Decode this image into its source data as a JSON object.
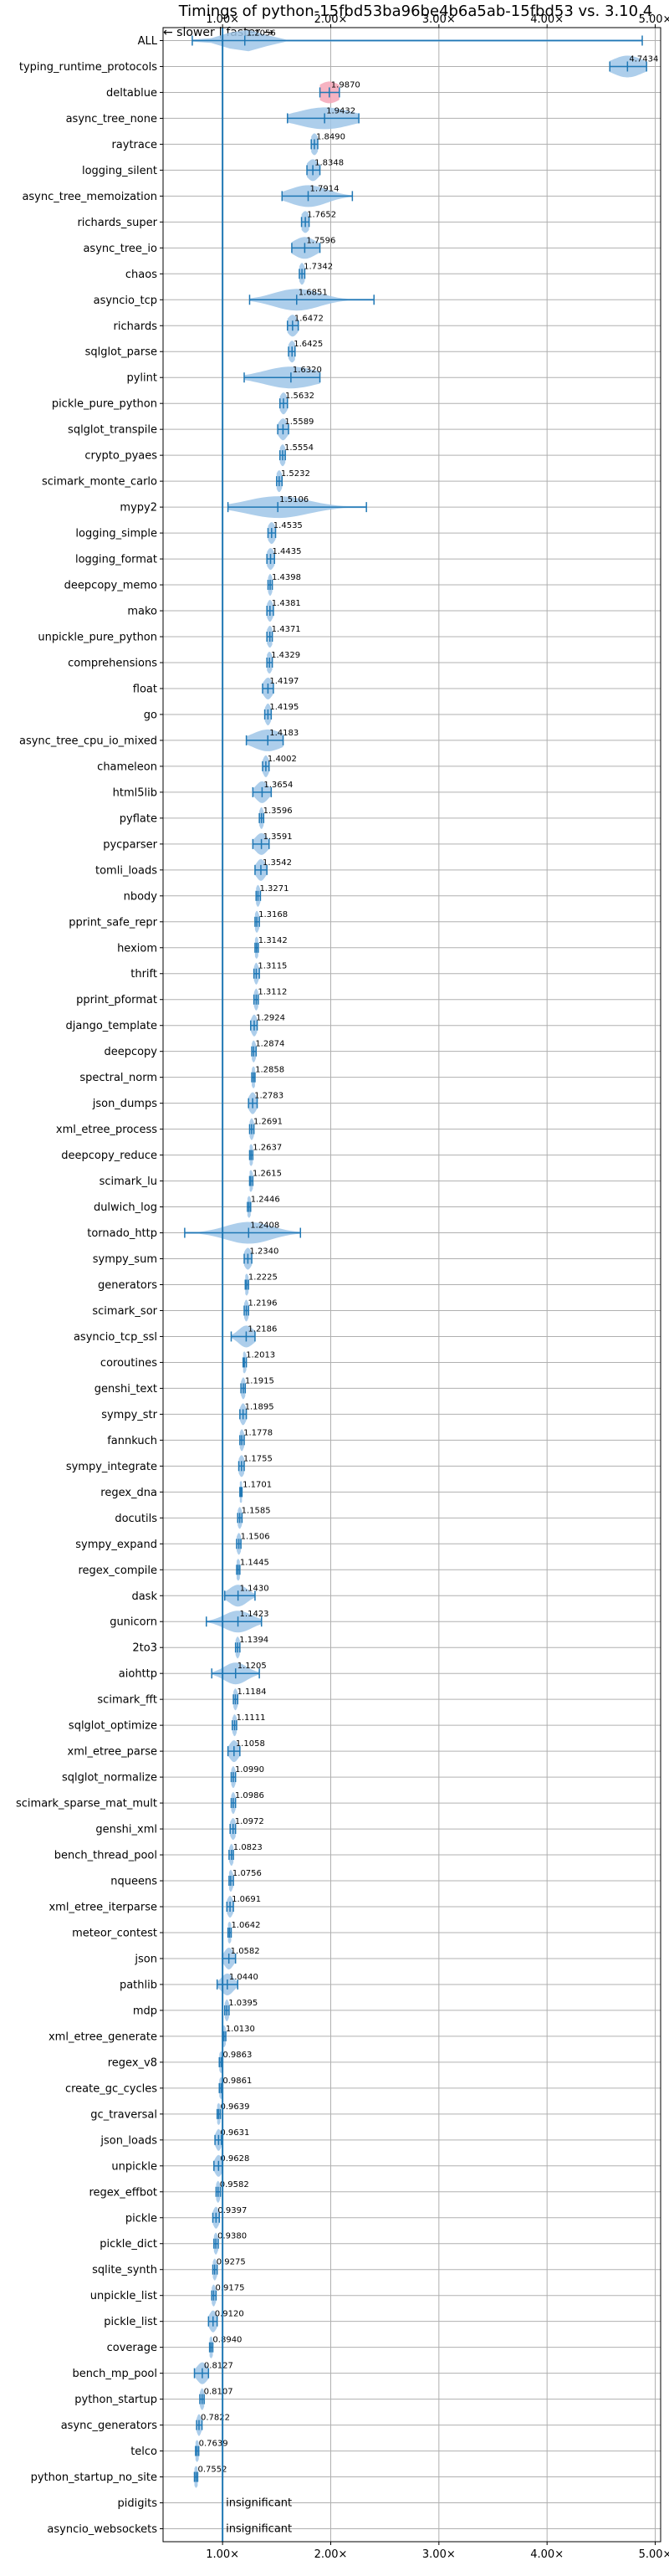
{
  "chart_data": {
    "type": "violin",
    "title": "Timings of python-15fbd53ba96be4b6a5ab-15fbd53 vs. 3.10.4",
    "direction_label": "← slower | faster →",
    "x_ticks": [
      "1.00×",
      "2.00×",
      "3.00×",
      "4.00×",
      "5.00×"
    ],
    "x_tick_values": [
      1,
      2,
      3,
      4,
      5
    ],
    "xlim": [
      0.45,
      5.05
    ],
    "reference_line": 1.0,
    "grid": true,
    "colors": {
      "violin": "#9fc5e8",
      "line": "#1f77b4",
      "highlight": "#f4a6b7"
    },
    "insignificant_label": "insignificant",
    "benchmarks": [
      {
        "name": "ALL",
        "mean": 1.2056,
        "label": "1.2056",
        "min": 0.72,
        "max": 4.88,
        "spread": 0.25
      },
      {
        "name": "typing_runtime_protocols",
        "mean": 4.7434,
        "label": "4.7434",
        "min": 4.58,
        "max": 4.92,
        "spread": 0.2
      },
      {
        "name": "deltablue",
        "mean": 1.987,
        "label": "1.9870",
        "min": 1.9,
        "max": 2.08,
        "spread": 0.15,
        "highlight": true
      },
      {
        "name": "async_tree_none",
        "mean": 1.9432,
        "label": "1.9432",
        "min": 1.6,
        "max": 2.26,
        "spread": 0.35
      },
      {
        "name": "raytrace",
        "mean": 1.849,
        "label": "1.8490",
        "min": 1.82,
        "max": 1.88,
        "spread": 0.05
      },
      {
        "name": "logging_silent",
        "mean": 1.8348,
        "label": "1.8348",
        "min": 1.78,
        "max": 1.9,
        "spread": 0.08
      },
      {
        "name": "async_tree_memoization",
        "mean": 1.7914,
        "label": "1.7914",
        "min": 1.55,
        "max": 2.2,
        "spread": 0.25
      },
      {
        "name": "richards_super",
        "mean": 1.7652,
        "label": "1.7652",
        "min": 1.73,
        "max": 1.8,
        "spread": 0.06
      },
      {
        "name": "async_tree_io",
        "mean": 1.7596,
        "label": "1.7596",
        "min": 1.64,
        "max": 1.9,
        "spread": 0.15
      },
      {
        "name": "chaos",
        "mean": 1.7342,
        "label": "1.7342",
        "min": 1.71,
        "max": 1.76,
        "spread": 0.04
      },
      {
        "name": "asyncio_tcp",
        "mean": 1.6851,
        "label": "1.6851",
        "min": 1.25,
        "max": 2.4,
        "spread": 0.3
      },
      {
        "name": "richards",
        "mean": 1.6472,
        "label": "1.6472",
        "min": 1.6,
        "max": 1.7,
        "spread": 0.07
      },
      {
        "name": "sqlglot_parse",
        "mean": 1.6425,
        "label": "1.6425",
        "min": 1.61,
        "max": 1.67,
        "spread": 0.05
      },
      {
        "name": "pylint",
        "mean": 1.632,
        "label": "1.6320",
        "min": 1.2,
        "max": 1.9,
        "spread": 0.35
      },
      {
        "name": "pickle_pure_python",
        "mean": 1.5632,
        "label": "1.5632",
        "min": 1.53,
        "max": 1.6,
        "spread": 0.05
      },
      {
        "name": "sqlglot_transpile",
        "mean": 1.5589,
        "label": "1.5589",
        "min": 1.51,
        "max": 1.61,
        "spread": 0.06
      },
      {
        "name": "crypto_pyaes",
        "mean": 1.5554,
        "label": "1.5554",
        "min": 1.53,
        "max": 1.58,
        "spread": 0.04
      },
      {
        "name": "scimark_monte_carlo",
        "mean": 1.5232,
        "label": "1.5232",
        "min": 1.5,
        "max": 1.55,
        "spread": 0.04
      },
      {
        "name": "mypy2",
        "mean": 1.5106,
        "label": "1.5106",
        "min": 1.05,
        "max": 2.33,
        "spread": 0.4
      },
      {
        "name": "logging_simple",
        "mean": 1.4535,
        "label": "1.4535",
        "min": 1.42,
        "max": 1.49,
        "spread": 0.05
      },
      {
        "name": "logging_format",
        "mean": 1.4435,
        "label": "1.4435",
        "min": 1.41,
        "max": 1.48,
        "spread": 0.05
      },
      {
        "name": "deepcopy_memo",
        "mean": 1.4398,
        "label": "1.4398",
        "min": 1.42,
        "max": 1.46,
        "spread": 0.03
      },
      {
        "name": "mako",
        "mean": 1.4381,
        "label": "1.4381",
        "min": 1.41,
        "max": 1.47,
        "spread": 0.04
      },
      {
        "name": "unpickle_pure_python",
        "mean": 1.4371,
        "label": "1.4371",
        "min": 1.41,
        "max": 1.46,
        "spread": 0.04
      },
      {
        "name": "comprehensions",
        "mean": 1.4329,
        "label": "1.4329",
        "min": 1.41,
        "max": 1.46,
        "spread": 0.04
      },
      {
        "name": "float",
        "mean": 1.4197,
        "label": "1.4197",
        "min": 1.37,
        "max": 1.47,
        "spread": 0.06
      },
      {
        "name": "go",
        "mean": 1.4195,
        "label": "1.4195",
        "min": 1.39,
        "max": 1.45,
        "spread": 0.04
      },
      {
        "name": "async_tree_cpu_io_mixed",
        "mean": 1.4183,
        "label": "1.4183",
        "min": 1.22,
        "max": 1.56,
        "spread": 0.2
      },
      {
        "name": "chameleon",
        "mean": 1.4002,
        "label": "1.4002",
        "min": 1.37,
        "max": 1.43,
        "spread": 0.04
      },
      {
        "name": "html5lib",
        "mean": 1.3654,
        "label": "1.3654",
        "min": 1.28,
        "max": 1.45,
        "spread": 0.08
      },
      {
        "name": "pyflate",
        "mean": 1.3596,
        "label": "1.3596",
        "min": 1.34,
        "max": 1.38,
        "spread": 0.03
      },
      {
        "name": "pycparser",
        "mean": 1.3591,
        "label": "1.3591",
        "min": 1.28,
        "max": 1.43,
        "spread": 0.08
      },
      {
        "name": "tomli_loads",
        "mean": 1.3542,
        "label": "1.3542",
        "min": 1.3,
        "max": 1.41,
        "spread": 0.06
      },
      {
        "name": "nbody",
        "mean": 1.3271,
        "label": "1.3271",
        "min": 1.31,
        "max": 1.35,
        "spread": 0.03
      },
      {
        "name": "pprint_safe_repr",
        "mean": 1.3168,
        "label": "1.3168",
        "min": 1.3,
        "max": 1.34,
        "spread": 0.03
      },
      {
        "name": "hexiom",
        "mean": 1.3142,
        "label": "1.3142",
        "min": 1.3,
        "max": 1.33,
        "spread": 0.03
      },
      {
        "name": "thrift",
        "mean": 1.3115,
        "label": "1.3115",
        "min": 1.29,
        "max": 1.34,
        "spread": 0.03
      },
      {
        "name": "pprint_pformat",
        "mean": 1.3112,
        "label": "1.3112",
        "min": 1.29,
        "max": 1.33,
        "spread": 0.03
      },
      {
        "name": "django_template",
        "mean": 1.2924,
        "label": "1.2924",
        "min": 1.26,
        "max": 1.32,
        "spread": 0.04
      },
      {
        "name": "deepcopy",
        "mean": 1.2874,
        "label": "1.2874",
        "min": 1.27,
        "max": 1.31,
        "spread": 0.03
      },
      {
        "name": "spectral_norm",
        "mean": 1.2858,
        "label": "1.2858",
        "min": 1.27,
        "max": 1.3,
        "spread": 0.03
      },
      {
        "name": "json_dumps",
        "mean": 1.2783,
        "label": "1.2783",
        "min": 1.24,
        "max": 1.32,
        "spread": 0.05
      },
      {
        "name": "xml_etree_process",
        "mean": 1.2691,
        "label": "1.2691",
        "min": 1.25,
        "max": 1.29,
        "spread": 0.03
      },
      {
        "name": "deepcopy_reduce",
        "mean": 1.2637,
        "label": "1.2637",
        "min": 1.25,
        "max": 1.28,
        "spread": 0.03
      },
      {
        "name": "scimark_lu",
        "mean": 1.2615,
        "label": "1.2615",
        "min": 1.25,
        "max": 1.28,
        "spread": 0.03
      },
      {
        "name": "dulwich_log",
        "mean": 1.2446,
        "label": "1.2446",
        "min": 1.23,
        "max": 1.26,
        "spread": 0.03
      },
      {
        "name": "tornado_http",
        "mean": 1.2408,
        "label": "1.2408",
        "min": 0.65,
        "max": 1.72,
        "spread": 0.3
      },
      {
        "name": "sympy_sum",
        "mean": 1.234,
        "label": "1.2340",
        "min": 1.2,
        "max": 1.27,
        "spread": 0.05
      },
      {
        "name": "generators",
        "mean": 1.2225,
        "label": "1.2225",
        "min": 1.21,
        "max": 1.24,
        "spread": 0.03
      },
      {
        "name": "scimark_sor",
        "mean": 1.2196,
        "label": "1.2196",
        "min": 1.2,
        "max": 1.24,
        "spread": 0.03
      },
      {
        "name": "asyncio_tcp_ssl",
        "mean": 1.2186,
        "label": "1.2186",
        "min": 1.08,
        "max": 1.3,
        "spread": 0.1
      },
      {
        "name": "coroutines",
        "mean": 1.2013,
        "label": "1.2013",
        "min": 1.19,
        "max": 1.22,
        "spread": 0.03
      },
      {
        "name": "genshi_text",
        "mean": 1.1915,
        "label": "1.1915",
        "min": 1.17,
        "max": 1.21,
        "spread": 0.03
      },
      {
        "name": "sympy_str",
        "mean": 1.1895,
        "label": "1.1895",
        "min": 1.16,
        "max": 1.22,
        "spread": 0.04
      },
      {
        "name": "fannkuch",
        "mean": 1.1778,
        "label": "1.1778",
        "min": 1.16,
        "max": 1.2,
        "spread": 0.03
      },
      {
        "name": "sympy_integrate",
        "mean": 1.1755,
        "label": "1.1755",
        "min": 1.15,
        "max": 1.2,
        "spread": 0.04
      },
      {
        "name": "regex_dna",
        "mean": 1.1701,
        "label": "1.1701",
        "min": 1.16,
        "max": 1.18,
        "spread": 0.02
      },
      {
        "name": "docutils",
        "mean": 1.1585,
        "label": "1.1585",
        "min": 1.14,
        "max": 1.18,
        "spread": 0.03
      },
      {
        "name": "sympy_expand",
        "mean": 1.1506,
        "label": "1.1506",
        "min": 1.13,
        "max": 1.17,
        "spread": 0.03
      },
      {
        "name": "regex_compile",
        "mean": 1.1445,
        "label": "1.1445",
        "min": 1.13,
        "max": 1.16,
        "spread": 0.03
      },
      {
        "name": "dask",
        "mean": 1.143,
        "label": "1.1430",
        "min": 1.02,
        "max": 1.3,
        "spread": 0.12
      },
      {
        "name": "gunicorn",
        "mean": 1.1423,
        "label": "1.1423",
        "min": 0.85,
        "max": 1.36,
        "spread": 0.18
      },
      {
        "name": "2to3",
        "mean": 1.1394,
        "label": "1.1394",
        "min": 1.12,
        "max": 1.16,
        "spread": 0.03
      },
      {
        "name": "aiohttp",
        "mean": 1.1205,
        "label": "1.1205",
        "min": 0.9,
        "max": 1.34,
        "spread": 0.15
      },
      {
        "name": "scimark_fft",
        "mean": 1.1184,
        "label": "1.1184",
        "min": 1.1,
        "max": 1.14,
        "spread": 0.03
      },
      {
        "name": "sqlglot_optimize",
        "mean": 1.1111,
        "label": "1.1111",
        "min": 1.09,
        "max": 1.13,
        "spread": 0.03
      },
      {
        "name": "xml_etree_parse",
        "mean": 1.1058,
        "label": "1.1058",
        "min": 1.05,
        "max": 1.16,
        "spread": 0.06
      },
      {
        "name": "sqlglot_normalize",
        "mean": 1.099,
        "label": "1.0990",
        "min": 1.08,
        "max": 1.12,
        "spread": 0.03
      },
      {
        "name": "scimark_sparse_mat_mult",
        "mean": 1.0986,
        "label": "1.0986",
        "min": 1.08,
        "max": 1.12,
        "spread": 0.03
      },
      {
        "name": "genshi_xml",
        "mean": 1.0972,
        "label": "1.0972",
        "min": 1.07,
        "max": 1.12,
        "spread": 0.04
      },
      {
        "name": "bench_thread_pool",
        "mean": 1.0823,
        "label": "1.0823",
        "min": 1.06,
        "max": 1.1,
        "spread": 0.03
      },
      {
        "name": "nqueens",
        "mean": 1.0756,
        "label": "1.0756",
        "min": 1.06,
        "max": 1.1,
        "spread": 0.03
      },
      {
        "name": "xml_etree_iterparse",
        "mean": 1.0691,
        "label": "1.0691",
        "min": 1.04,
        "max": 1.1,
        "spread": 0.04
      },
      {
        "name": "meteor_contest",
        "mean": 1.0642,
        "label": "1.0642",
        "min": 1.05,
        "max": 1.08,
        "spread": 0.02
      },
      {
        "name": "json",
        "mean": 1.0582,
        "label": "1.0582",
        "min": 1.0,
        "max": 1.12,
        "spread": 0.06
      },
      {
        "name": "pathlib",
        "mean": 1.044,
        "label": "1.0440",
        "min": 0.95,
        "max": 1.14,
        "spread": 0.08
      },
      {
        "name": "mdp",
        "mean": 1.0395,
        "label": "1.0395",
        "min": 1.02,
        "max": 1.06,
        "spread": 0.03
      },
      {
        "name": "xml_etree_generate",
        "mean": 1.013,
        "label": "1.0130",
        "min": 1.0,
        "max": 1.03,
        "spread": 0.02
      },
      {
        "name": "regex_v8",
        "mean": 0.9863,
        "label": "0.9863",
        "min": 0.97,
        "max": 1.0,
        "spread": 0.02
      },
      {
        "name": "create_gc_cycles",
        "mean": 0.9861,
        "label": "0.9861",
        "min": 0.97,
        "max": 1.0,
        "spread": 0.02
      },
      {
        "name": "gc_traversal",
        "mean": 0.9639,
        "label": "0.9639",
        "min": 0.95,
        "max": 0.98,
        "spread": 0.02
      },
      {
        "name": "json_loads",
        "mean": 0.9631,
        "label": "0.9631",
        "min": 0.93,
        "max": 0.99,
        "spread": 0.04
      },
      {
        "name": "unpickle",
        "mean": 0.9628,
        "label": "0.9628",
        "min": 0.92,
        "max": 1.0,
        "spread": 0.05
      },
      {
        "name": "regex_effbot",
        "mean": 0.9582,
        "label": "0.9582",
        "min": 0.94,
        "max": 0.98,
        "spread": 0.02
      },
      {
        "name": "pickle",
        "mean": 0.9397,
        "label": "0.9397",
        "min": 0.91,
        "max": 0.97,
        "spread": 0.04
      },
      {
        "name": "pickle_dict",
        "mean": 0.938,
        "label": "0.9380",
        "min": 0.92,
        "max": 0.96,
        "spread": 0.03
      },
      {
        "name": "sqlite_synth",
        "mean": 0.9275,
        "label": "0.9275",
        "min": 0.91,
        "max": 0.95,
        "spread": 0.03
      },
      {
        "name": "unpickle_list",
        "mean": 0.9175,
        "label": "0.9175",
        "min": 0.9,
        "max": 0.94,
        "spread": 0.03
      },
      {
        "name": "pickle_list",
        "mean": 0.912,
        "label": "0.9120",
        "min": 0.87,
        "max": 0.95,
        "spread": 0.05
      },
      {
        "name": "coverage",
        "mean": 0.894,
        "label": "0.8940",
        "min": 0.88,
        "max": 0.91,
        "spread": 0.02
      },
      {
        "name": "bench_mp_pool",
        "mean": 0.8127,
        "label": "0.8127",
        "min": 0.74,
        "max": 0.87,
        "spread": 0.07
      },
      {
        "name": "python_startup",
        "mean": 0.8107,
        "label": "0.8107",
        "min": 0.79,
        "max": 0.83,
        "spread": 0.03
      },
      {
        "name": "async_generators",
        "mean": 0.7822,
        "label": "0.7822",
        "min": 0.76,
        "max": 0.81,
        "spread": 0.03
      },
      {
        "name": "telco",
        "mean": 0.7639,
        "label": "0.7639",
        "min": 0.75,
        "max": 0.78,
        "spread": 0.02
      },
      {
        "name": "python_startup_no_site",
        "mean": 0.7552,
        "label": "0.7552",
        "min": 0.74,
        "max": 0.77,
        "spread": 0.02
      },
      {
        "name": "pidigits",
        "insignificant": true
      },
      {
        "name": "asyncio_websockets",
        "insignificant": true
      }
    ]
  }
}
